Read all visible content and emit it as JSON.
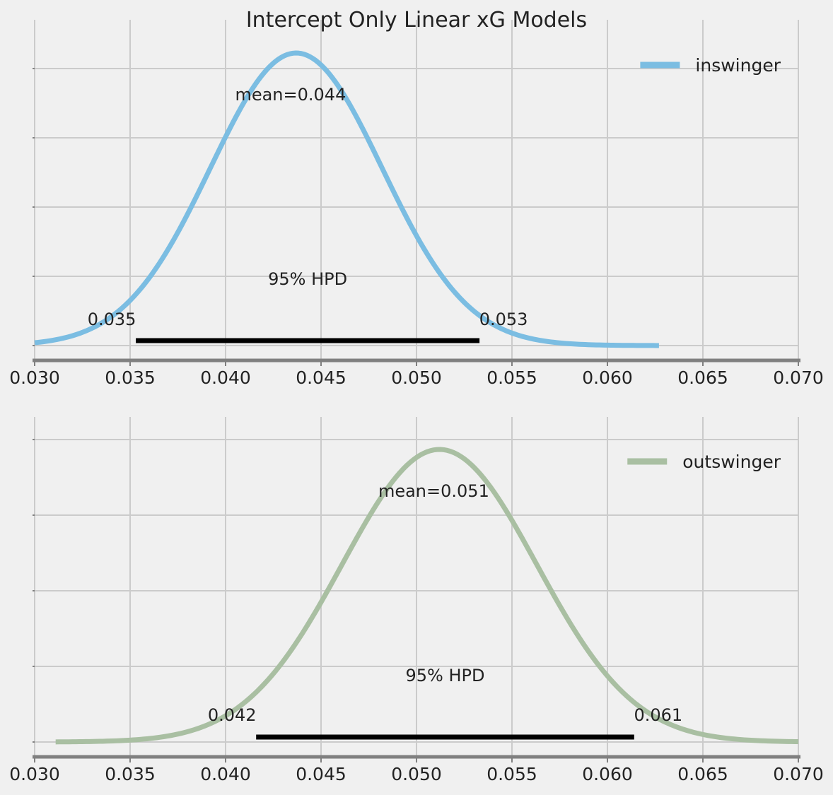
{
  "figure_title": "Intercept Only Linear xG Models",
  "chart_data": [
    {
      "type": "line",
      "title": "",
      "xlabel": "",
      "ylabel": "",
      "xlim": [
        0.03,
        0.07
      ],
      "x_ticks": [
        "0.030",
        "0.035",
        "0.040",
        "0.045",
        "0.050",
        "0.055",
        "0.060",
        "0.065",
        "0.070"
      ],
      "y_tick_labels_shown": false,
      "grid": true,
      "legend_position": "top-right",
      "series": [
        {
          "name": "inswinger",
          "color": "#7bbde2",
          "distribution": "posterior density",
          "mean": 0.0437,
          "sd": 0.0045,
          "x_range": [
            0.03,
            0.0627
          ]
        }
      ],
      "annotations": {
        "mean_label": "mean=0.044",
        "hpd_label": "95% HPD",
        "hpd_low": 0.0353,
        "hpd_high": 0.0533,
        "hpd_low_label": "0.035",
        "hpd_high_label": "0.053"
      }
    },
    {
      "type": "line",
      "title": "",
      "xlabel": "",
      "ylabel": "",
      "xlim": [
        0.03,
        0.07
      ],
      "x_ticks": [
        "0.030",
        "0.035",
        "0.040",
        "0.045",
        "0.050",
        "0.055",
        "0.060",
        "0.065",
        "0.070"
      ],
      "y_tick_labels_shown": false,
      "grid": true,
      "legend_position": "top-right",
      "series": [
        {
          "name": "outswinger",
          "color": "#a9bfa2",
          "distribution": "posterior density",
          "mean": 0.0512,
          "sd": 0.0051,
          "x_range": [
            0.0311,
            0.07
          ]
        }
      ],
      "annotations": {
        "mean_label": "mean=0.051",
        "hpd_label": "95% HPD",
        "hpd_low": 0.0416,
        "hpd_high": 0.0614,
        "hpd_low_label": "0.042",
        "hpd_high_label": "0.061"
      }
    }
  ]
}
